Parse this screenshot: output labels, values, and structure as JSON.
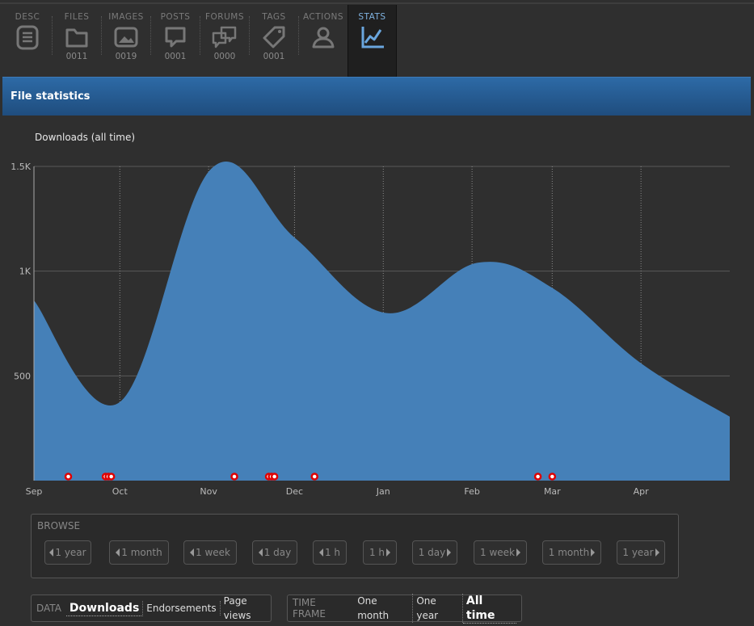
{
  "tabs": [
    {
      "label": "DESC",
      "count": "",
      "icon": "document-icon"
    },
    {
      "label": "FILES",
      "count": "0011",
      "icon": "folder-icon"
    },
    {
      "label": "IMAGES",
      "count": "0019",
      "icon": "image-icon"
    },
    {
      "label": "POSTS",
      "count": "0001",
      "icon": "speech-bubble-icon"
    },
    {
      "label": "FORUMS",
      "count": "0000",
      "icon": "speech-bubbles-icon"
    },
    {
      "label": "TAGS",
      "count": "0001",
      "icon": "tag-icon"
    },
    {
      "label": "ACTIONS",
      "count": "",
      "icon": "user-icon"
    },
    {
      "label": "STATS",
      "count": "",
      "icon": "line-chart-icon",
      "active": true
    }
  ],
  "header": {
    "title": "File statistics"
  },
  "colors": {
    "accent": "#4580b8",
    "header": "#2a5f96",
    "marker": "#e00000",
    "tab_active": "#7fb2e0"
  },
  "chart_data": {
    "type": "area",
    "title": "Downloads (all time)",
    "xlabel": "",
    "ylabel": "",
    "ylim": [
      0,
      1500
    ],
    "yticks": [
      "500",
      "1K",
      "1.5K"
    ],
    "ytick_values": [
      500,
      1000,
      1500
    ],
    "xticks": [
      "Sep",
      "Oct",
      "Nov",
      "Dec",
      "Jan",
      "Feb",
      "Mar",
      "Apr"
    ],
    "xticks_days": [
      0,
      30,
      61,
      91,
      122,
      153,
      181,
      212
    ],
    "xrange_days": [
      0,
      243
    ],
    "series": [
      {
        "points": [
          {
            "day": 0,
            "value": 860
          },
          {
            "day": 30,
            "value": 375
          },
          {
            "day": 62,
            "value": 1490
          },
          {
            "day": 91,
            "value": 1160
          },
          {
            "day": 123,
            "value": 800
          },
          {
            "day": 155,
            "value": 1040
          },
          {
            "day": 181,
            "value": 920
          },
          {
            "day": 212,
            "value": 560
          },
          {
            "day": 243,
            "value": 305
          }
        ]
      }
    ],
    "event_markers_days": [
      12,
      25,
      26,
      27,
      70,
      82,
      83,
      84,
      98,
      176,
      181
    ],
    "grid": true
  },
  "browse": {
    "label": "BROWSE",
    "back": [
      "1 year",
      "1 month",
      "1 week",
      "1 day",
      "1 h"
    ],
    "forward": [
      "1 h",
      "1 day",
      "1 week",
      "1 month",
      "1 year"
    ]
  },
  "data_options": {
    "label": "DATA",
    "options": [
      "Downloads",
      "Endorsements",
      "Page views"
    ],
    "selected": "Downloads"
  },
  "timeframe": {
    "label": "TIME FRAME",
    "options": [
      "One month",
      "One year",
      "All time"
    ],
    "selected": "All time"
  }
}
